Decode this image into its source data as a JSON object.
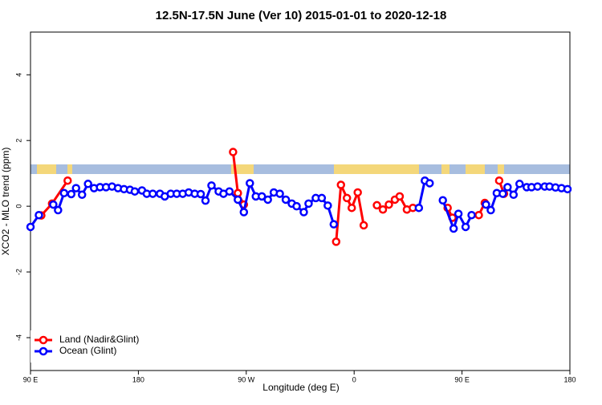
{
  "chart_data": {
    "type": "line",
    "title": "12.5N-17.5N June (Ver 10)   2015-01-01 to 2020-12-18",
    "x_label": "Longitude (deg E)",
    "y_label": "XCO2 - MLO trend (ppm)",
    "xlim": [
      90,
      540
    ],
    "ylim": [
      -5,
      5.3
    ],
    "xticks": [
      {
        "value": 90,
        "label": "90 E"
      },
      180,
      {
        "value": 270,
        "label": "90 W"
      },
      {
        "value": 360,
        "label": "0"
      },
      {
        "value": 450,
        "label": "90 E"
      },
      180
    ],
    "yticks": [
      4,
      2,
      0,
      -2,
      -4
    ],
    "legend": "bottom-left",
    "series": [
      {
        "name": "Land (Nadir&Glint)",
        "color": "#ff0000",
        "x": [
          99,
          108,
          121,
          190,
          259,
          263,
          268,
          300,
          345,
          349,
          354,
          358,
          363,
          368,
          374,
          379,
          384,
          389,
          394,
          398,
          404,
          409,
          420,
          438,
          442,
          455,
          464,
          469,
          475,
          481,
          485
        ],
        "values": [
          -0.28,
          0.08,
          0.78,
          null,
          1.65,
          0.4,
          0.05,
          null,
          -1.08,
          0.65,
          0.25,
          -0.05,
          0.42,
          -0.58,
          null,
          0.03,
          -0.1,
          0.05,
          0.2,
          0.3,
          -0.1,
          -0.05,
          null,
          -0.05,
          -0.35,
          null,
          -0.27,
          0.1,
          null,
          0.78,
          0.38
        ]
      },
      {
        "name": "Ocean (Glint)",
        "color": "#0000ff",
        "x": [
          90,
          97,
          104,
          109,
          113,
          118,
          124,
          128,
          133,
          138,
          143,
          148,
          153,
          158,
          163,
          168,
          173,
          177,
          183,
          187,
          192,
          198,
          202,
          207,
          212,
          217,
          222,
          227,
          232,
          236,
          241,
          247,
          251,
          256,
          263,
          268,
          273,
          278,
          283,
          288,
          293,
          298,
          303,
          308,
          312,
          318,
          322,
          328,
          333,
          338,
          343,
          380,
          414,
          419,
          423,
          428,
          434,
          443,
          447,
          453,
          458,
          464,
          470,
          474,
          479,
          484,
          488,
          493,
          498,
          504,
          508,
          513,
          519,
          523,
          528,
          533,
          538
        ],
        "values": [
          -0.63,
          -0.27,
          null,
          0.05,
          -0.12,
          0.4,
          0.37,
          0.55,
          0.35,
          0.68,
          0.55,
          0.58,
          0.58,
          0.6,
          0.55,
          0.52,
          0.5,
          0.45,
          0.48,
          0.38,
          0.38,
          0.38,
          0.3,
          0.38,
          0.38,
          0.38,
          0.42,
          0.38,
          0.37,
          0.17,
          0.63,
          0.45,
          0.38,
          0.45,
          0.2,
          -0.18,
          0.7,
          0.3,
          0.3,
          0.2,
          0.42,
          0.38,
          0.2,
          0.08,
          0.0,
          -0.18,
          0.08,
          0.25,
          0.25,
          0.02,
          -0.55,
          null,
          -0.05,
          0.78,
          0.7,
          null,
          0.18,
          -0.68,
          -0.23,
          -0.63,
          -0.27,
          null,
          0.05,
          -0.12,
          0.4,
          0.38,
          0.58,
          0.35,
          0.68,
          0.58,
          0.58,
          0.6,
          0.6,
          0.6,
          0.57,
          0.55,
          0.52
        ]
      }
    ]
  }
}
